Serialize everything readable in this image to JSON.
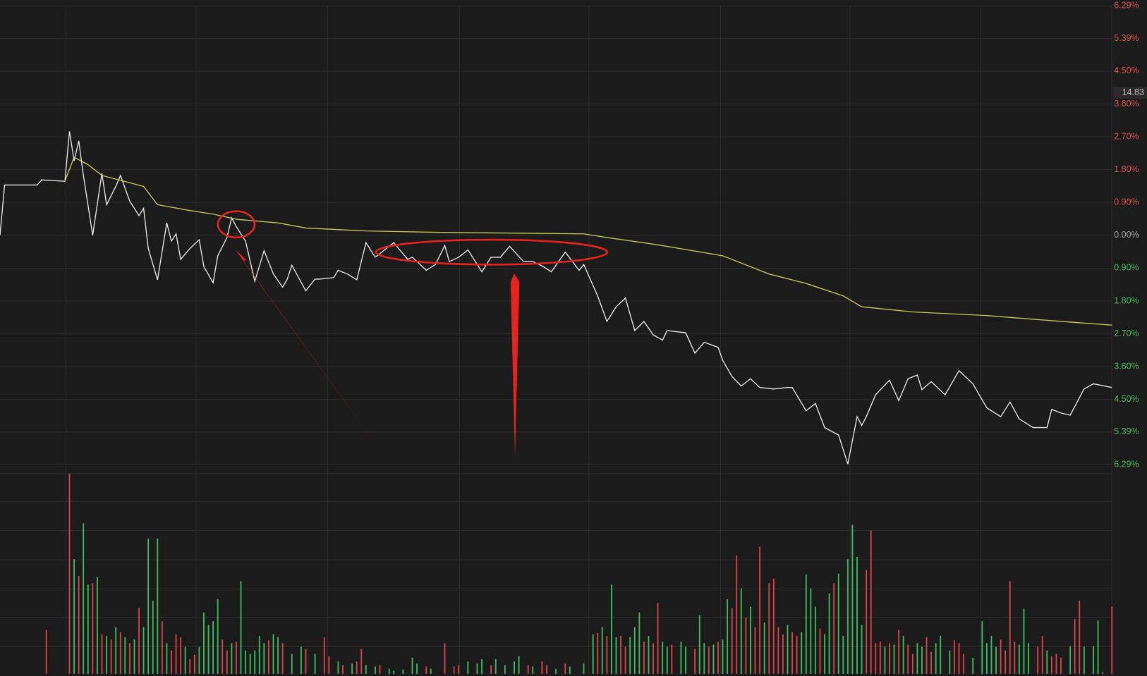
{
  "chart_data": [
    {
      "type": "line",
      "xlim": [
        0,
        240
      ],
      "ylim": [
        -6.29,
        6.29
      ],
      "yticks": [
        {
          "value": 6.29,
          "label": "6.29%"
        },
        {
          "value": 5.39,
          "label": "5.39%"
        },
        {
          "value": 4.5,
          "label": "4.50%"
        },
        {
          "value": 3.6,
          "label": "3.60%"
        },
        {
          "value": 2.7,
          "label": "2.70%"
        },
        {
          "value": 1.8,
          "label": "1.80%"
        },
        {
          "value": 0.9,
          "label": "0.90%"
        },
        {
          "value": 0,
          "label": "0.00%"
        },
        {
          "value": -0.9,
          "label": "0.90%"
        },
        {
          "value": -1.8,
          "label": "1.80%"
        },
        {
          "value": -2.7,
          "label": "2.70%"
        },
        {
          "value": -3.6,
          "label": "3.60%"
        },
        {
          "value": -4.5,
          "label": "4.50%"
        },
        {
          "value": -5.39,
          "label": "5.39%"
        },
        {
          "value": -6.29,
          "label": "6.29%"
        }
      ],
      "grid": true,
      "up_color": "#e0504a",
      "down_color": "#3dbd5d",
      "flat_color": "#a8a8a8",
      "price_label": "14.83",
      "series": [
        {
          "color": "#e8e8e8",
          "x": [
            0,
            1,
            8,
            9,
            14,
            15,
            16,
            17,
            18,
            20,
            22,
            23,
            25,
            26,
            28,
            30,
            31,
            32,
            34,
            36,
            37,
            38,
            39,
            41,
            43,
            44,
            46,
            47,
            49,
            50,
            51,
            53,
            55,
            57,
            59,
            61,
            62,
            63,
            66,
            68,
            69,
            72,
            73,
            75,
            77,
            79,
            81,
            85,
            88,
            89,
            92,
            94,
            96,
            97,
            99,
            101,
            104,
            106,
            108,
            110,
            113,
            115,
            117,
            119,
            122,
            125,
            126,
            129,
            131,
            133,
            135,
            137,
            139,
            141,
            143,
            144,
            148,
            150,
            152,
            155,
            156,
            158,
            160,
            162,
            164,
            167,
            170,
            171,
            174,
            176,
            178,
            181,
            183,
            185,
            186,
            187,
            189,
            192,
            194,
            196,
            198,
            199,
            201,
            204,
            207,
            210,
            213,
            216,
            218,
            220,
            223,
            226,
            227,
            229,
            231,
            234,
            236,
            240
          ],
          "values": [
            0,
            1.38,
            1.38,
            1.52,
            1.48,
            2.85,
            2.04,
            2.59,
            1.64,
            0,
            1.7,
            0.84,
            1.34,
            1.64,
            0.94,
            0.54,
            0.74,
            -0.36,
            -1.22,
            0.34,
            -0.16,
            0.04,
            -0.66,
            -0.36,
            -0.12,
            -0.86,
            -1.3,
            -0.56,
            -0.06,
            0.48,
            0.24,
            -0.16,
            -1.26,
            -0.42,
            -1.06,
            -1.42,
            -1.2,
            -0.82,
            -1.52,
            -1.2,
            -1.2,
            -1.16,
            -0.96,
            -1.06,
            -1.22,
            -0.2,
            -0.6,
            -0.2,
            -0.66,
            -0.6,
            -0.96,
            -0.8,
            -0.28,
            -0.72,
            -0.6,
            -0.4,
            -1,
            -0.6,
            -0.6,
            -0.3,
            -0.72,
            -0.72,
            -0.84,
            -1,
            -0.46,
            -0.96,
            -0.8,
            -1.66,
            -2.36,
            -1.96,
            -1.72,
            -2.61,
            -2.36,
            -2.73,
            -2.87,
            -2.61,
            -2.67,
            -3.23,
            -2.93,
            -3.07,
            -3.43,
            -3.87,
            -4.13,
            -3.93,
            -4.17,
            -4.21,
            -4.17,
            -4.17,
            -4.81,
            -4.61,
            -5.27,
            -5.47,
            -6.27,
            -4.97,
            -5.21,
            -4.97,
            -4.37,
            -3.97,
            -4.53,
            -3.93,
            -3.83,
            -4.23,
            -4.01,
            -4.37,
            -3.71,
            -4.07,
            -4.73,
            -4.97,
            -4.57,
            -5.03,
            -5.27,
            -5.27,
            -4.77,
            -4.87,
            -4.93,
            -4.21,
            -4.07,
            -4.17
          ]
        },
        {
          "color": "#c8c85a",
          "x": [
            14,
            16,
            19,
            22,
            25,
            31,
            34,
            41,
            46,
            51,
            60,
            66,
            79,
            95,
            111,
            126,
            131,
            142,
            156,
            166,
            174,
            182,
            186,
            197,
            213,
            229,
            240
          ],
          "values": [
            1.48,
            2.14,
            1.94,
            1.64,
            1.54,
            1.34,
            0.84,
            0.68,
            0.58,
            0.44,
            0.34,
            0.2,
            0.12,
            0.08,
            0.06,
            0.04,
            -0.06,
            -0.26,
            -0.56,
            -1.06,
            -1.32,
            -1.66,
            -1.96,
            -2.1,
            -2.2,
            -2.36,
            -2.46
          ]
        }
      ]
    },
    {
      "type": "bar",
      "xlim": [
        0,
        240
      ],
      "ylim": [
        0,
        274
      ],
      "palette": {
        "r": "#d9434a",
        "g": "#3dbb5e"
      },
      "x": [
        10,
        15,
        16,
        17,
        18,
        19,
        20,
        21,
        22,
        23,
        24,
        25,
        26,
        27,
        28,
        29,
        30,
        31,
        32,
        33,
        34,
        35,
        36,
        37,
        38,
        39,
        40,
        41,
        42,
        43,
        44,
        45,
        46,
        47,
        48,
        49,
        50,
        51,
        52,
        53,
        54,
        55,
        56,
        57,
        58,
        59,
        60,
        61,
        63,
        65,
        66,
        68,
        70,
        71,
        73,
        74,
        76,
        77,
        78,
        79,
        81,
        82,
        84,
        85,
        87,
        89,
        90,
        92,
        93,
        96,
        98,
        99,
        101,
        103,
        104,
        106,
        107,
        109,
        111,
        112,
        114,
        115,
        117,
        118,
        120,
        122,
        123,
        126,
        128,
        129,
        130,
        131,
        132,
        133,
        134,
        135,
        136,
        137,
        138,
        139,
        140,
        141,
        142,
        143,
        144,
        145,
        147,
        148,
        150,
        151,
        152,
        153,
        154,
        155,
        156,
        157,
        158,
        159,
        160,
        161,
        162,
        163,
        164,
        165,
        166,
        167,
        168,
        169,
        170,
        171,
        172,
        173,
        174,
        175,
        176,
        177,
        178,
        179,
        180,
        181,
        182,
        183,
        184,
        185,
        186,
        187,
        188,
        189,
        190,
        191,
        192,
        193,
        194,
        195,
        196,
        197,
        198,
        199,
        200,
        201,
        202,
        203,
        205,
        206,
        207,
        208,
        210,
        212,
        213,
        214,
        215,
        216,
        217,
        218,
        219,
        220,
        221,
        222,
        224,
        225,
        226,
        227,
        228,
        229,
        231,
        232,
        233,
        234,
        236,
        237,
        238,
        240
      ],
      "values": [
        60,
        274,
        157,
        134,
        206,
        122,
        124,
        132,
        54,
        52,
        47,
        64,
        57,
        50,
        42,
        47,
        90,
        64,
        185,
        100,
        185,
        72,
        42,
        32,
        54,
        50,
        37,
        20,
        26,
        37,
        84,
        67,
        72,
        102,
        47,
        32,
        42,
        44,
        127,
        32,
        27,
        32,
        52,
        42,
        46,
        54,
        50,
        42,
        27,
        37,
        34,
        27,
        50,
        24,
        17,
        12,
        14,
        17,
        34,
        12,
        10,
        12,
        7,
        4,
        6,
        22,
        14,
        10,
        7,
        42,
        10,
        12,
        17,
        14,
        20,
        12,
        20,
        12,
        17,
        24,
        12,
        10,
        17,
        12,
        7,
        14,
        10,
        14,
        54,
        56,
        64,
        52,
        122,
        50,
        52,
        37,
        50,
        64,
        84,
        44,
        52,
        42,
        97,
        44,
        37,
        40,
        44,
        37,
        34,
        80,
        42,
        37,
        40,
        44,
        47,
        102,
        90,
        162,
        117,
        77,
        92,
        64,
        174,
        70,
        124,
        130,
        64,
        54,
        67,
        57,
        52,
        57,
        136,
        117,
        92,
        62,
        54,
        110,
        124,
        137,
        52,
        157,
        204,
        160,
        67,
        142,
        196,
        42,
        44,
        37,
        42,
        40,
        60,
        52,
        40,
        27,
        42,
        37,
        50,
        30,
        42,
        52,
        32,
        46,
        42,
        27,
        22,
        72,
        42,
        52,
        37,
        47,
        32,
        127,
        44,
        40,
        89,
        42,
        37,
        52,
        32,
        24,
        27,
        22,
        38,
        75,
        100,
        37,
        38,
        73,
        2,
        92
      ],
      "bar_colors": [
        "r",
        "r",
        "g",
        "r",
        "g",
        "g",
        "r",
        "g",
        "r",
        "g",
        "r",
        "g",
        "r",
        "g",
        "r",
        "g",
        "r",
        "g",
        "g",
        "g",
        "g",
        "r",
        "g",
        "r",
        "r",
        "r",
        "g",
        "r",
        "r",
        "g",
        "g",
        "g",
        "g",
        "g",
        "r",
        "r",
        "g",
        "r",
        "g",
        "g",
        "g",
        "g",
        "g",
        "g",
        "r",
        "g",
        "g",
        "r",
        "g",
        "g",
        "r",
        "g",
        "r",
        "r",
        "g",
        "r",
        "g",
        "r",
        "r",
        "g",
        "g",
        "r",
        "g",
        "g",
        "g",
        "g",
        "g",
        "r",
        "g",
        "r",
        "r",
        "r",
        "g",
        "g",
        "g",
        "r",
        "g",
        "g",
        "g",
        "g",
        "r",
        "g",
        "r",
        "r",
        "g",
        "r",
        "g",
        "g",
        "g",
        "r",
        "g",
        "r",
        "g",
        "g",
        "r",
        "r",
        "g",
        "g",
        "g",
        "r",
        "g",
        "r",
        "r",
        "g",
        "g",
        "r",
        "g",
        "g",
        "r",
        "g",
        "g",
        "r",
        "g",
        "r",
        "g",
        "g",
        "r",
        "r",
        "g",
        "r",
        "g",
        "r",
        "r",
        "g",
        "r",
        "r",
        "r",
        "r",
        "g",
        "r",
        "r",
        "g",
        "g",
        "g",
        "g",
        "r",
        "g",
        "g",
        "r",
        "g",
        "g",
        "g",
        "g",
        "g",
        "g",
        "r",
        "r",
        "r",
        "r",
        "g",
        "r",
        "g",
        "r",
        "g",
        "r",
        "r",
        "g",
        "g",
        "r",
        "r",
        "g",
        "g",
        "g",
        "r",
        "r",
        "r",
        "g",
        "g",
        "g",
        "g",
        "g",
        "r",
        "r",
        "r",
        "r",
        "g",
        "g",
        "g",
        "r",
        "r",
        "g",
        "r",
        "r",
        "r",
        "g",
        "r",
        "r",
        "g",
        "g",
        "g",
        "g",
        "r"
      ]
    }
  ]
}
